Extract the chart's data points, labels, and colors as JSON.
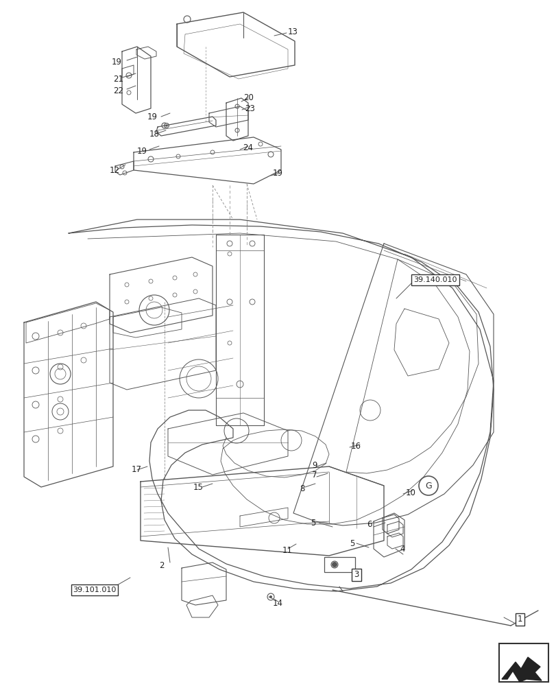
{
  "bg_color": "#ffffff",
  "line_color": "#555555",
  "label_color": "#222222",
  "thin": 0.5,
  "medium": 0.8,
  "thick": 1.2
}
